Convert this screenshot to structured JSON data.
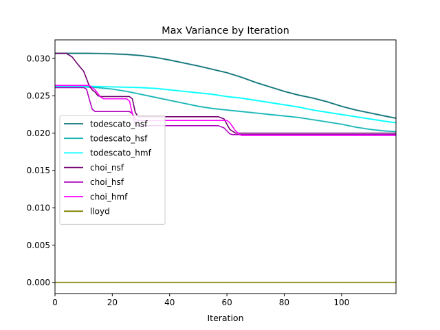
{
  "chart_data": {
    "type": "line",
    "title": "Max Variance by Iteration",
    "xlabel": "Iteration",
    "ylabel": "",
    "xlim": [
      0,
      119
    ],
    "ylim": [
      -0.0015,
      0.0325
    ],
    "xticks": [
      0,
      20,
      40,
      60,
      80,
      100
    ],
    "yticks": [
      0.0,
      0.005,
      0.01,
      0.015,
      0.02,
      0.025,
      0.03
    ],
    "ytick_labels": [
      "0.000",
      "0.005",
      "0.010",
      "0.015",
      "0.020",
      "0.025",
      "0.030"
    ],
    "grid": false,
    "legend_position": "center-left",
    "series": [
      {
        "name": "todescato_nsf",
        "color": "#0d7377",
        "band": 0.00012,
        "points": [
          [
            0,
            0.0307
          ],
          [
            10,
            0.0307
          ],
          [
            15,
            0.03068
          ],
          [
            20,
            0.03063
          ],
          [
            25,
            0.03055
          ],
          [
            30,
            0.0304
          ],
          [
            35,
            0.03015
          ],
          [
            40,
            0.0298
          ],
          [
            45,
            0.0294
          ],
          [
            50,
            0.029
          ],
          [
            55,
            0.02855
          ],
          [
            60,
            0.0281
          ],
          [
            65,
            0.0275
          ],
          [
            70,
            0.0268
          ],
          [
            75,
            0.0262
          ],
          [
            80,
            0.0256
          ],
          [
            85,
            0.0251
          ],
          [
            90,
            0.0247
          ],
          [
            95,
            0.0242
          ],
          [
            100,
            0.0236
          ],
          [
            105,
            0.0231
          ],
          [
            110,
            0.0227
          ],
          [
            115,
            0.0223
          ],
          [
            119,
            0.022
          ]
        ]
      },
      {
        "name": "todescato_hsf",
        "color": "#17b5b5",
        "band": 0.00012,
        "points": [
          [
            0,
            0.0262
          ],
          [
            10,
            0.0262
          ],
          [
            15,
            0.0261
          ],
          [
            20,
            0.0259
          ],
          [
            25,
            0.0256
          ],
          [
            30,
            0.0252
          ],
          [
            35,
            0.0248
          ],
          [
            40,
            0.0244
          ],
          [
            45,
            0.024
          ],
          [
            50,
            0.0236
          ],
          [
            55,
            0.0233
          ],
          [
            60,
            0.0231
          ],
          [
            65,
            0.0229
          ],
          [
            70,
            0.0227
          ],
          [
            75,
            0.0225
          ],
          [
            80,
            0.0223
          ],
          [
            85,
            0.0221
          ],
          [
            90,
            0.0218
          ],
          [
            95,
            0.0215
          ],
          [
            100,
            0.0212
          ],
          [
            105,
            0.0208
          ],
          [
            110,
            0.0205
          ],
          [
            115,
            0.0203
          ],
          [
            119,
            0.0202
          ]
        ]
      },
      {
        "name": "todescato_hmf",
        "color": "#00ffff",
        "band": 0.00012,
        "points": [
          [
            0,
            0.0263
          ],
          [
            10,
            0.0263
          ],
          [
            20,
            0.0262
          ],
          [
            30,
            0.0261
          ],
          [
            35,
            0.026
          ],
          [
            40,
            0.0258
          ],
          [
            45,
            0.0256
          ],
          [
            50,
            0.0254
          ],
          [
            55,
            0.0252
          ],
          [
            60,
            0.0249
          ],
          [
            65,
            0.0247
          ],
          [
            70,
            0.0244
          ],
          [
            75,
            0.0241
          ],
          [
            80,
            0.0238
          ],
          [
            85,
            0.0235
          ],
          [
            90,
            0.0231
          ],
          [
            95,
            0.0228
          ],
          [
            100,
            0.0225
          ],
          [
            105,
            0.0222
          ],
          [
            110,
            0.0219
          ],
          [
            115,
            0.0216
          ],
          [
            119,
            0.0214
          ]
        ]
      },
      {
        "name": "choi_nsf",
        "color": "#6e006e",
        "band": 0,
        "points": [
          [
            0,
            0.0307
          ],
          [
            4,
            0.0307
          ],
          [
            6,
            0.0302
          ],
          [
            8,
            0.0292
          ],
          [
            10,
            0.0283
          ],
          [
            11,
            0.0273
          ],
          [
            12,
            0.0263
          ],
          [
            13,
            0.0258
          ],
          [
            14,
            0.0255
          ],
          [
            15,
            0.025
          ],
          [
            16,
            0.0249
          ],
          [
            26,
            0.0249
          ],
          [
            27,
            0.0246
          ],
          [
            28,
            0.0228
          ],
          [
            29,
            0.0222
          ],
          [
            57,
            0.0222
          ],
          [
            59,
            0.0219
          ],
          [
            61,
            0.0205
          ],
          [
            63,
            0.02
          ],
          [
            119,
            0.02
          ]
        ]
      },
      {
        "name": "choi_hsf",
        "color": "#b000c0",
        "band": 0,
        "points": [
          [
            0,
            0.0261
          ],
          [
            10,
            0.0261
          ],
          [
            11,
            0.0259
          ],
          [
            12,
            0.0245
          ],
          [
            13,
            0.0232
          ],
          [
            14,
            0.0229
          ],
          [
            26,
            0.0229
          ],
          [
            27,
            0.0226
          ],
          [
            28,
            0.0213
          ],
          [
            29,
            0.021
          ],
          [
            57,
            0.021
          ],
          [
            59,
            0.0207
          ],
          [
            61,
            0.0199
          ],
          [
            62,
            0.0198
          ],
          [
            119,
            0.0198
          ]
        ]
      },
      {
        "name": "choi_hmf",
        "color": "#ff00ff",
        "band": 0,
        "points": [
          [
            0,
            0.0264
          ],
          [
            12,
            0.0264
          ],
          [
            14,
            0.0258
          ],
          [
            16,
            0.0248
          ],
          [
            17,
            0.0246
          ],
          [
            25,
            0.0246
          ],
          [
            26,
            0.0243
          ],
          [
            27,
            0.0226
          ],
          [
            28,
            0.0219
          ],
          [
            29,
            0.0217
          ],
          [
            60,
            0.0217
          ],
          [
            61,
            0.0214
          ],
          [
            63,
            0.0203
          ],
          [
            65,
            0.0197
          ],
          [
            119,
            0.0197
          ]
        ]
      },
      {
        "name": "lloyd",
        "color": "#808000",
        "band": 0,
        "points": [
          [
            0,
            0.0
          ],
          [
            119,
            0.0
          ]
        ]
      }
    ]
  }
}
